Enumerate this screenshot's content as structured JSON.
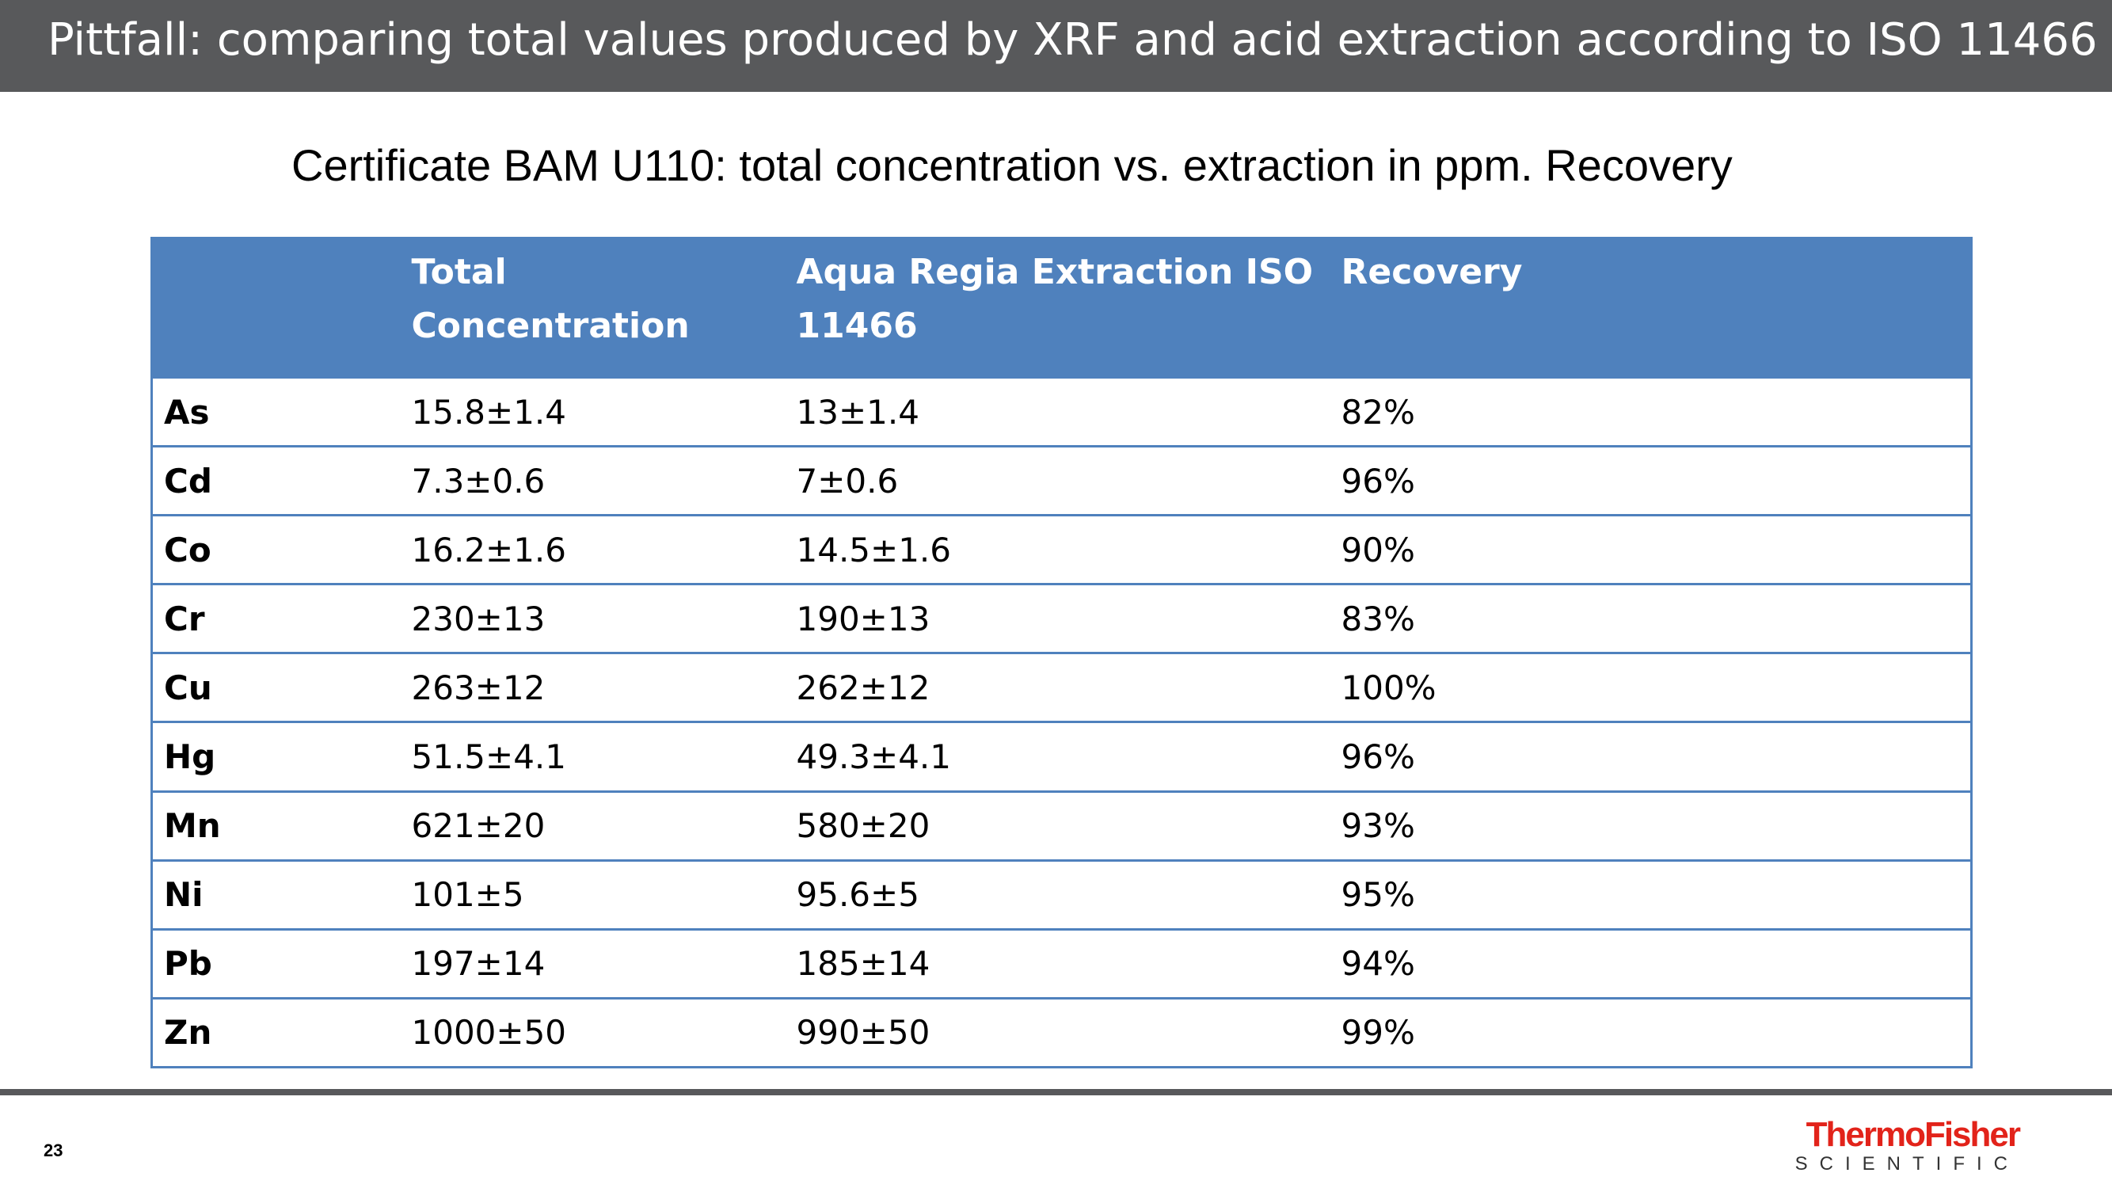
{
  "slide": {
    "title": "Pittfall: comparing total values produced by XRF and acid extraction according to ISO 11466",
    "subtitle": "Certificate BAM U110: total concentration vs. extraction in ppm. Recovery",
    "page_number": "23"
  },
  "table": {
    "headers": [
      "",
      "Total Concentration",
      "Aqua Regia Extraction ISO 11466",
      "Recovery"
    ],
    "rows": [
      [
        "As",
        "15.8±1.4",
        "13±1.4",
        "82%"
      ],
      [
        "Cd",
        "7.3±0.6",
        "7±0.6",
        "96%"
      ],
      [
        "Co",
        "16.2±1.6",
        "14.5±1.6",
        "90%"
      ],
      [
        "Cr",
        "230±13",
        "190±13",
        "83%"
      ],
      [
        "Cu",
        "263±12",
        "262±12",
        "100%"
      ],
      [
        "Hg",
        "51.5±4.1",
        "49.3±4.1",
        "96%"
      ],
      [
        "Mn",
        "621±20",
        "580±20",
        "93%"
      ],
      [
        "Ni",
        "101±5",
        "95.6±5",
        "95%"
      ],
      [
        "Pb",
        "197±14",
        "185±14",
        "94%"
      ],
      [
        "Zn",
        "1000±50",
        "990±50",
        "99%"
      ]
    ]
  },
  "logo": {
    "line1": "ThermoFisher",
    "line2": "SCIENTIFIC"
  },
  "colors": {
    "title_bar": "#58595b",
    "table_header": "#4f81bd",
    "table_border": "#4f81bd",
    "logo_red": "#e2231a"
  }
}
